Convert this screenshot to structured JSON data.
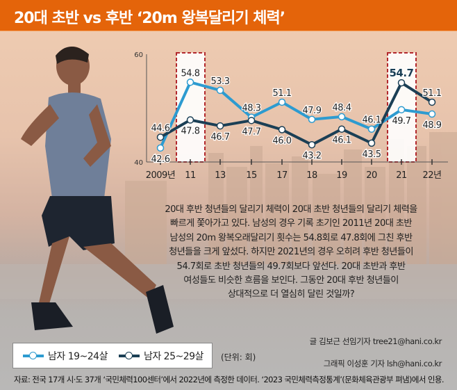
{
  "header": {
    "title": "20대 초반 vs 후반 ‘20m 왕복달리기 체력’"
  },
  "chart_data": {
    "type": "line",
    "title": "",
    "xlabel": "",
    "ylabel": "",
    "categories": [
      "2009년",
      "11",
      "13",
      "15",
      "17",
      "18",
      "19",
      "20",
      "21",
      "22년"
    ],
    "ylim": [
      40,
      60
    ],
    "yticks": [
      "40",
      "60"
    ],
    "highlighted_categories": [
      "11",
      "21"
    ],
    "grid": false,
    "series": [
      {
        "name": "남자 19~24살",
        "color": "#2d9bd0",
        "values": [
          42.6,
          54.8,
          53.3,
          48.3,
          51.1,
          47.9,
          48.4,
          46.1,
          49.7,
          48.9
        ],
        "labels": [
          "42.6",
          "54.8",
          "53.3",
          "48.3",
          "51.1",
          "47.9",
          "48.4",
          "46.1",
          "49.7",
          "48.9"
        ]
      },
      {
        "name": "남자 25~29살",
        "color": "#1b3f55",
        "values": [
          44.6,
          47.8,
          46.7,
          47.7,
          46.0,
          43.2,
          46.1,
          43.5,
          54.7,
          51.1
        ],
        "labels": [
          "44.6",
          "47.8",
          "46.7",
          "47.7",
          "46.0",
          "43.2",
          "46.1",
          "43.5",
          "54.7",
          "51.1"
        ]
      }
    ],
    "legend_position": "bottom-left",
    "unit_label": "(단위: 회)"
  },
  "paragraph": [
    "20대 후반 청년들의 달리기 체력이 20대 초반 청년들의 달리기 체력을",
    "빠르게 쫓아가고 있다. 남성의 경우 기록 초기인 2011년 20대 초반",
    "남성의 20m 왕복오래달리기 횟수는 54.8회로 47.8회에 그친 후반",
    "청년들을 크게 앞섰다. 하지만 2021년의 경우 오히려 후반 청년들이",
    "54.7회로 초반 청년들의 49.7회보다 앞선다. 20대 초반과 후반",
    "여성들도 비슷한 흐름을 보인다. 그동안 20대 후반 청년들이",
    "상대적으로 더 열심히 달린 것일까?"
  ],
  "credits": {
    "writer": "글 김보근 선임기자 tree21@hani.co.kr",
    "graphic": "그래픽 이성훈 기자 lsh@hani.co.kr"
  },
  "source": "자료: 전국 17개 시·도 37개 ‘국민체력100센터’에서 2022년에 측정한 데이터. ‘2023 국민체력측정통계’(문화체육관광부 펴냄)에서 인용."
}
